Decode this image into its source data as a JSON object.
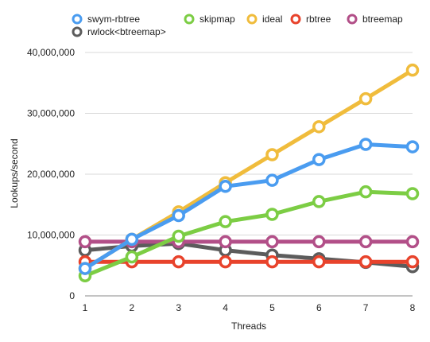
{
  "chart_data": {
    "type": "line",
    "title": "",
    "xlabel": "Threads",
    "ylabel": "Lookups/second",
    "x": [
      1,
      2,
      3,
      4,
      5,
      6,
      7,
      8
    ],
    "x_tick_labels": [
      "1",
      "2",
      "3",
      "4",
      "5",
      "6",
      "7",
      "8"
    ],
    "xlim": [
      1,
      8
    ],
    "ylim": [
      0,
      40000000
    ],
    "y_ticks": [
      0,
      10000000,
      20000000,
      30000000,
      40000000
    ],
    "y_tick_labels": [
      "0",
      "10,000,000",
      "20,000,000",
      "30,000,000",
      "40,000,000"
    ],
    "grid": true,
    "legend_position": "top",
    "series": [
      {
        "name": "swym-rbtree",
        "color": "#4a9cf0",
        "values": [
          4500000,
          9300000,
          13200000,
          18000000,
          19000000,
          22400000,
          24900000,
          24500000
        ]
      },
      {
        "name": "skipmap",
        "color": "#7ccd44",
        "values": [
          3300000,
          6400000,
          9800000,
          12200000,
          13400000,
          15500000,
          17100000,
          16800000
        ]
      },
      {
        "name": "ideal",
        "color": "#f0bc3c",
        "values": [
          4500000,
          9300000,
          13800000,
          18600000,
          23200000,
          27800000,
          32400000,
          37100000
        ]
      },
      {
        "name": "rbtree",
        "color": "#e8432c",
        "values": [
          5600000,
          5600000,
          5600000,
          5600000,
          5600000,
          5600000,
          5600000,
          5600000
        ]
      },
      {
        "name": "btreemap",
        "color": "#b24f88",
        "values": [
          8900000,
          8900000,
          8900000,
          8900000,
          8900000,
          8900000,
          8900000,
          8900000
        ]
      },
      {
        "name": "rwlock<btreemap>",
        "color": "#5c5c5c",
        "values": [
          7500000,
          8200000,
          8600000,
          7500000,
          6700000,
          6100000,
          5500000,
          4800000
        ]
      }
    ],
    "draw_order": [
      "rwlock<btreemap>",
      "rbtree",
      "btreemap",
      "skipmap",
      "ideal",
      "swym-rbtree"
    ]
  }
}
